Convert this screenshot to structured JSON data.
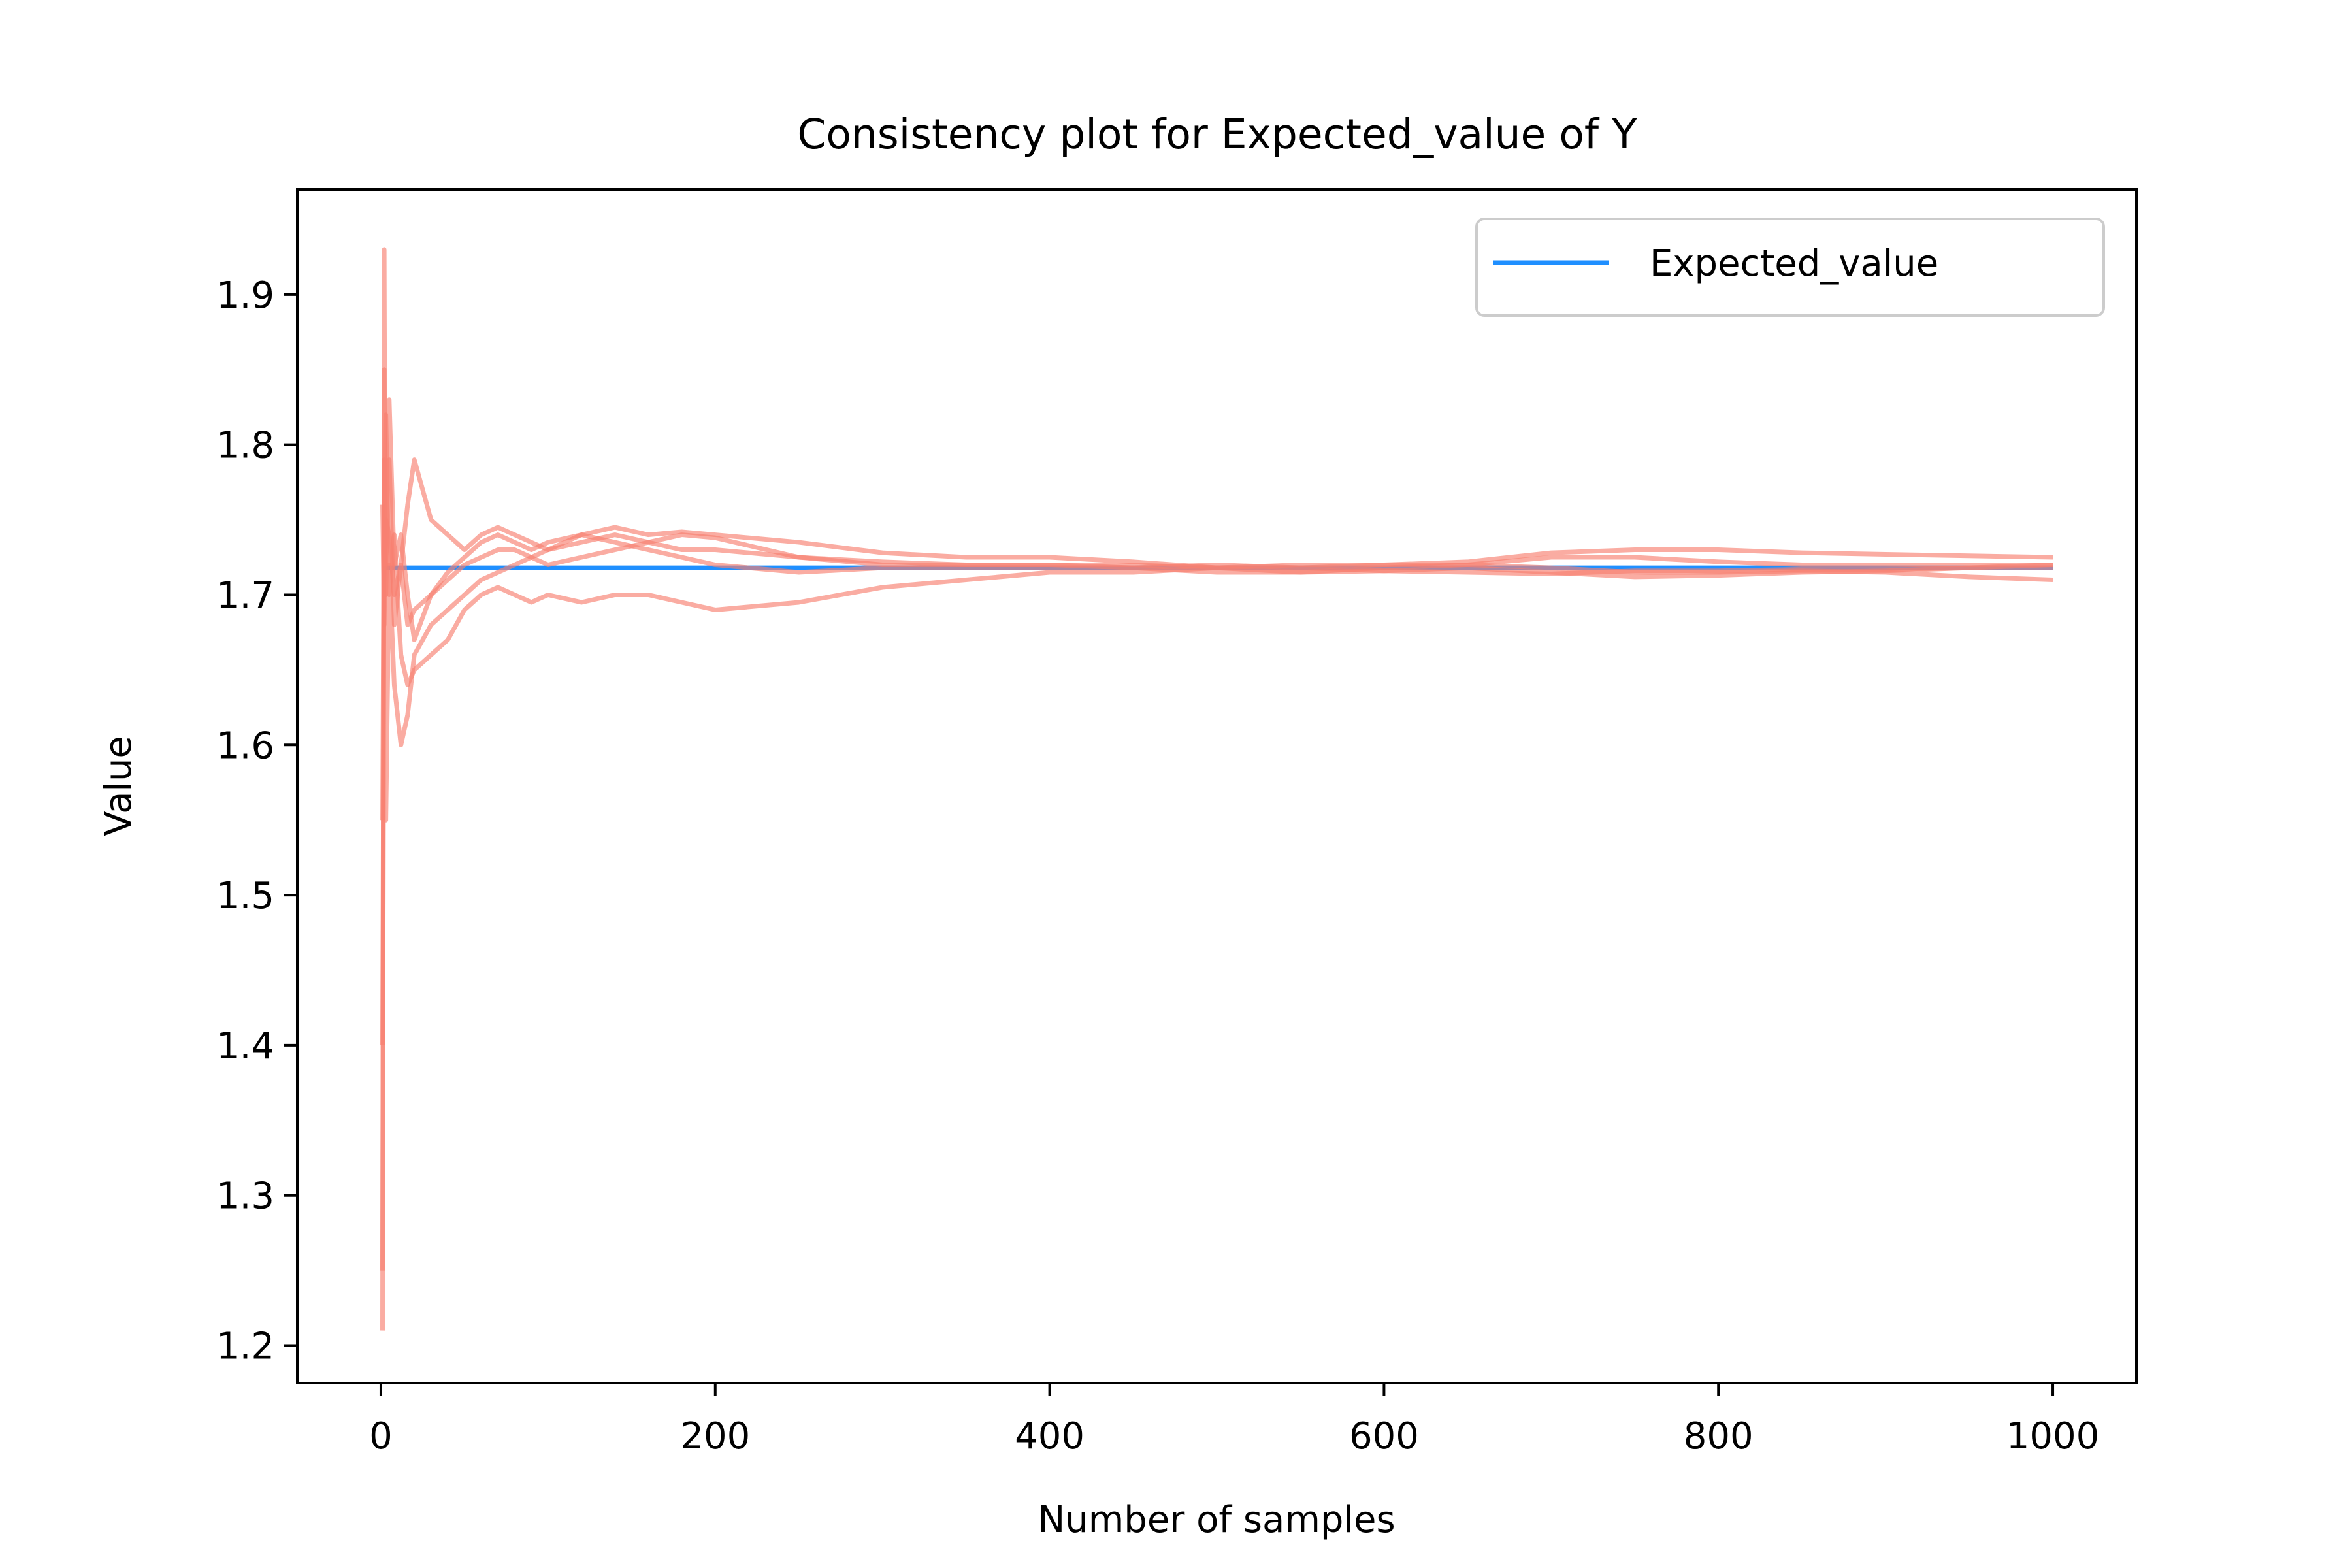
{
  "chart_data": {
    "type": "line",
    "title": "Consistency plot for Expected_value of Y",
    "xlabel": "Number of samples",
    "ylabel": "Value",
    "xlim": [
      -50,
      1050
    ],
    "ylim": [
      1.175,
      1.97
    ],
    "xticks": [
      0,
      200,
      400,
      600,
      800,
      1000
    ],
    "yticks": [
      1.2,
      1.3,
      1.4,
      1.5,
      1.6,
      1.7,
      1.8,
      1.9
    ],
    "xtick_labels": [
      "0",
      "200",
      "400",
      "600",
      "800",
      "1000"
    ],
    "ytick_labels": [
      "1.2",
      "1.3",
      "1.4",
      "1.5",
      "1.6",
      "1.7",
      "1.8",
      "1.9"
    ],
    "grid": false,
    "legend": {
      "position": "upper right",
      "entries": [
        {
          "label": "Expected_value",
          "color": "#1f8fff"
        }
      ]
    },
    "expected_value": {
      "name": "Expected_value",
      "x": [
        1,
        1000
      ],
      "y": [
        1.718,
        1.718
      ],
      "color": "#1f8fff"
    },
    "estimate_color": "#f88070",
    "estimate_series": [
      {
        "x": [
          1,
          2,
          3,
          5,
          8,
          12,
          16,
          20,
          30,
          40,
          50,
          60,
          70,
          80,
          90,
          100,
          120,
          140,
          160,
          180,
          200,
          250,
          300,
          350,
          400,
          450,
          500,
          550,
          600,
          650,
          700,
          750,
          800,
          850,
          900,
          950,
          1000
        ],
        "y": [
          1.21,
          1.93,
          1.55,
          1.72,
          1.64,
          1.6,
          1.62,
          1.66,
          1.68,
          1.69,
          1.7,
          1.71,
          1.715,
          1.72,
          1.725,
          1.73,
          1.735,
          1.74,
          1.735,
          1.73,
          1.73,
          1.725,
          1.72,
          1.72,
          1.72,
          1.718,
          1.715,
          1.715,
          1.718,
          1.72,
          1.725,
          1.725,
          1.722,
          1.72,
          1.72,
          1.72,
          1.72
        ]
      },
      {
        "x": [
          1,
          2,
          3,
          5,
          8,
          12,
          16,
          20,
          30,
          40,
          50,
          60,
          70,
          80,
          90,
          100,
          120,
          140,
          160,
          180,
          200,
          250,
          300,
          350,
          400,
          450,
          500,
          550,
          600,
          650,
          700,
          750,
          800,
          850,
          900,
          950,
          1000
        ],
        "y": [
          1.25,
          1.85,
          1.7,
          1.79,
          1.68,
          1.72,
          1.76,
          1.79,
          1.75,
          1.74,
          1.73,
          1.74,
          1.745,
          1.74,
          1.735,
          1.73,
          1.74,
          1.745,
          1.74,
          1.742,
          1.74,
          1.735,
          1.728,
          1.725,
          1.725,
          1.722,
          1.718,
          1.718,
          1.72,
          1.722,
          1.728,
          1.73,
          1.73,
          1.728,
          1.727,
          1.726,
          1.725
        ]
      },
      {
        "x": [
          1,
          2,
          3,
          5,
          8,
          12,
          16,
          20,
          30,
          40,
          50,
          60,
          70,
          80,
          90,
          100,
          120,
          140,
          160,
          180,
          200,
          250,
          300,
          350,
          400,
          450,
          500,
          550,
          600,
          650,
          700,
          750,
          800,
          850,
          900,
          950,
          1000
        ],
        "y": [
          1.4,
          1.76,
          1.82,
          1.7,
          1.74,
          1.66,
          1.64,
          1.65,
          1.66,
          1.67,
          1.69,
          1.7,
          1.705,
          1.7,
          1.695,
          1.7,
          1.695,
          1.7,
          1.7,
          1.695,
          1.69,
          1.695,
          1.705,
          1.71,
          1.715,
          1.715,
          1.718,
          1.72,
          1.72,
          1.72,
          1.718,
          1.715,
          1.715,
          1.716,
          1.715,
          1.712,
          1.71
        ]
      },
      {
        "x": [
          1,
          2,
          3,
          5,
          8,
          12,
          16,
          20,
          30,
          40,
          50,
          60,
          70,
          80,
          90,
          100,
          120,
          140,
          160,
          180,
          200,
          250,
          300,
          350,
          400,
          450,
          500,
          550,
          600,
          650,
          700,
          750,
          800,
          850,
          900,
          950,
          1000
        ],
        "y": [
          1.76,
          1.68,
          1.75,
          1.74,
          1.7,
          1.72,
          1.68,
          1.69,
          1.7,
          1.71,
          1.72,
          1.725,
          1.73,
          1.73,
          1.725,
          1.72,
          1.725,
          1.73,
          1.735,
          1.74,
          1.738,
          1.725,
          1.722,
          1.72,
          1.72,
          1.72,
          1.718,
          1.715,
          1.716,
          1.715,
          1.714,
          1.716,
          1.716,
          1.717,
          1.717,
          1.718,
          1.718
        ]
      },
      {
        "x": [
          1,
          2,
          3,
          5,
          8,
          12,
          16,
          20,
          30,
          40,
          50,
          60,
          70,
          80,
          90,
          100,
          120,
          140,
          160,
          180,
          200,
          250,
          300,
          350,
          400,
          450,
          500,
          550,
          600,
          650,
          700,
          750,
          800,
          850,
          900,
          950,
          1000
        ],
        "y": [
          1.55,
          1.79,
          1.72,
          1.83,
          1.72,
          1.74,
          1.7,
          1.67,
          1.7,
          1.715,
          1.725,
          1.735,
          1.74,
          1.735,
          1.73,
          1.735,
          1.74,
          1.735,
          1.73,
          1.725,
          1.72,
          1.715,
          1.718,
          1.718,
          1.718,
          1.718,
          1.72,
          1.718,
          1.716,
          1.718,
          1.715,
          1.712,
          1.713,
          1.715,
          1.716,
          1.718,
          1.72
        ]
      }
    ]
  }
}
